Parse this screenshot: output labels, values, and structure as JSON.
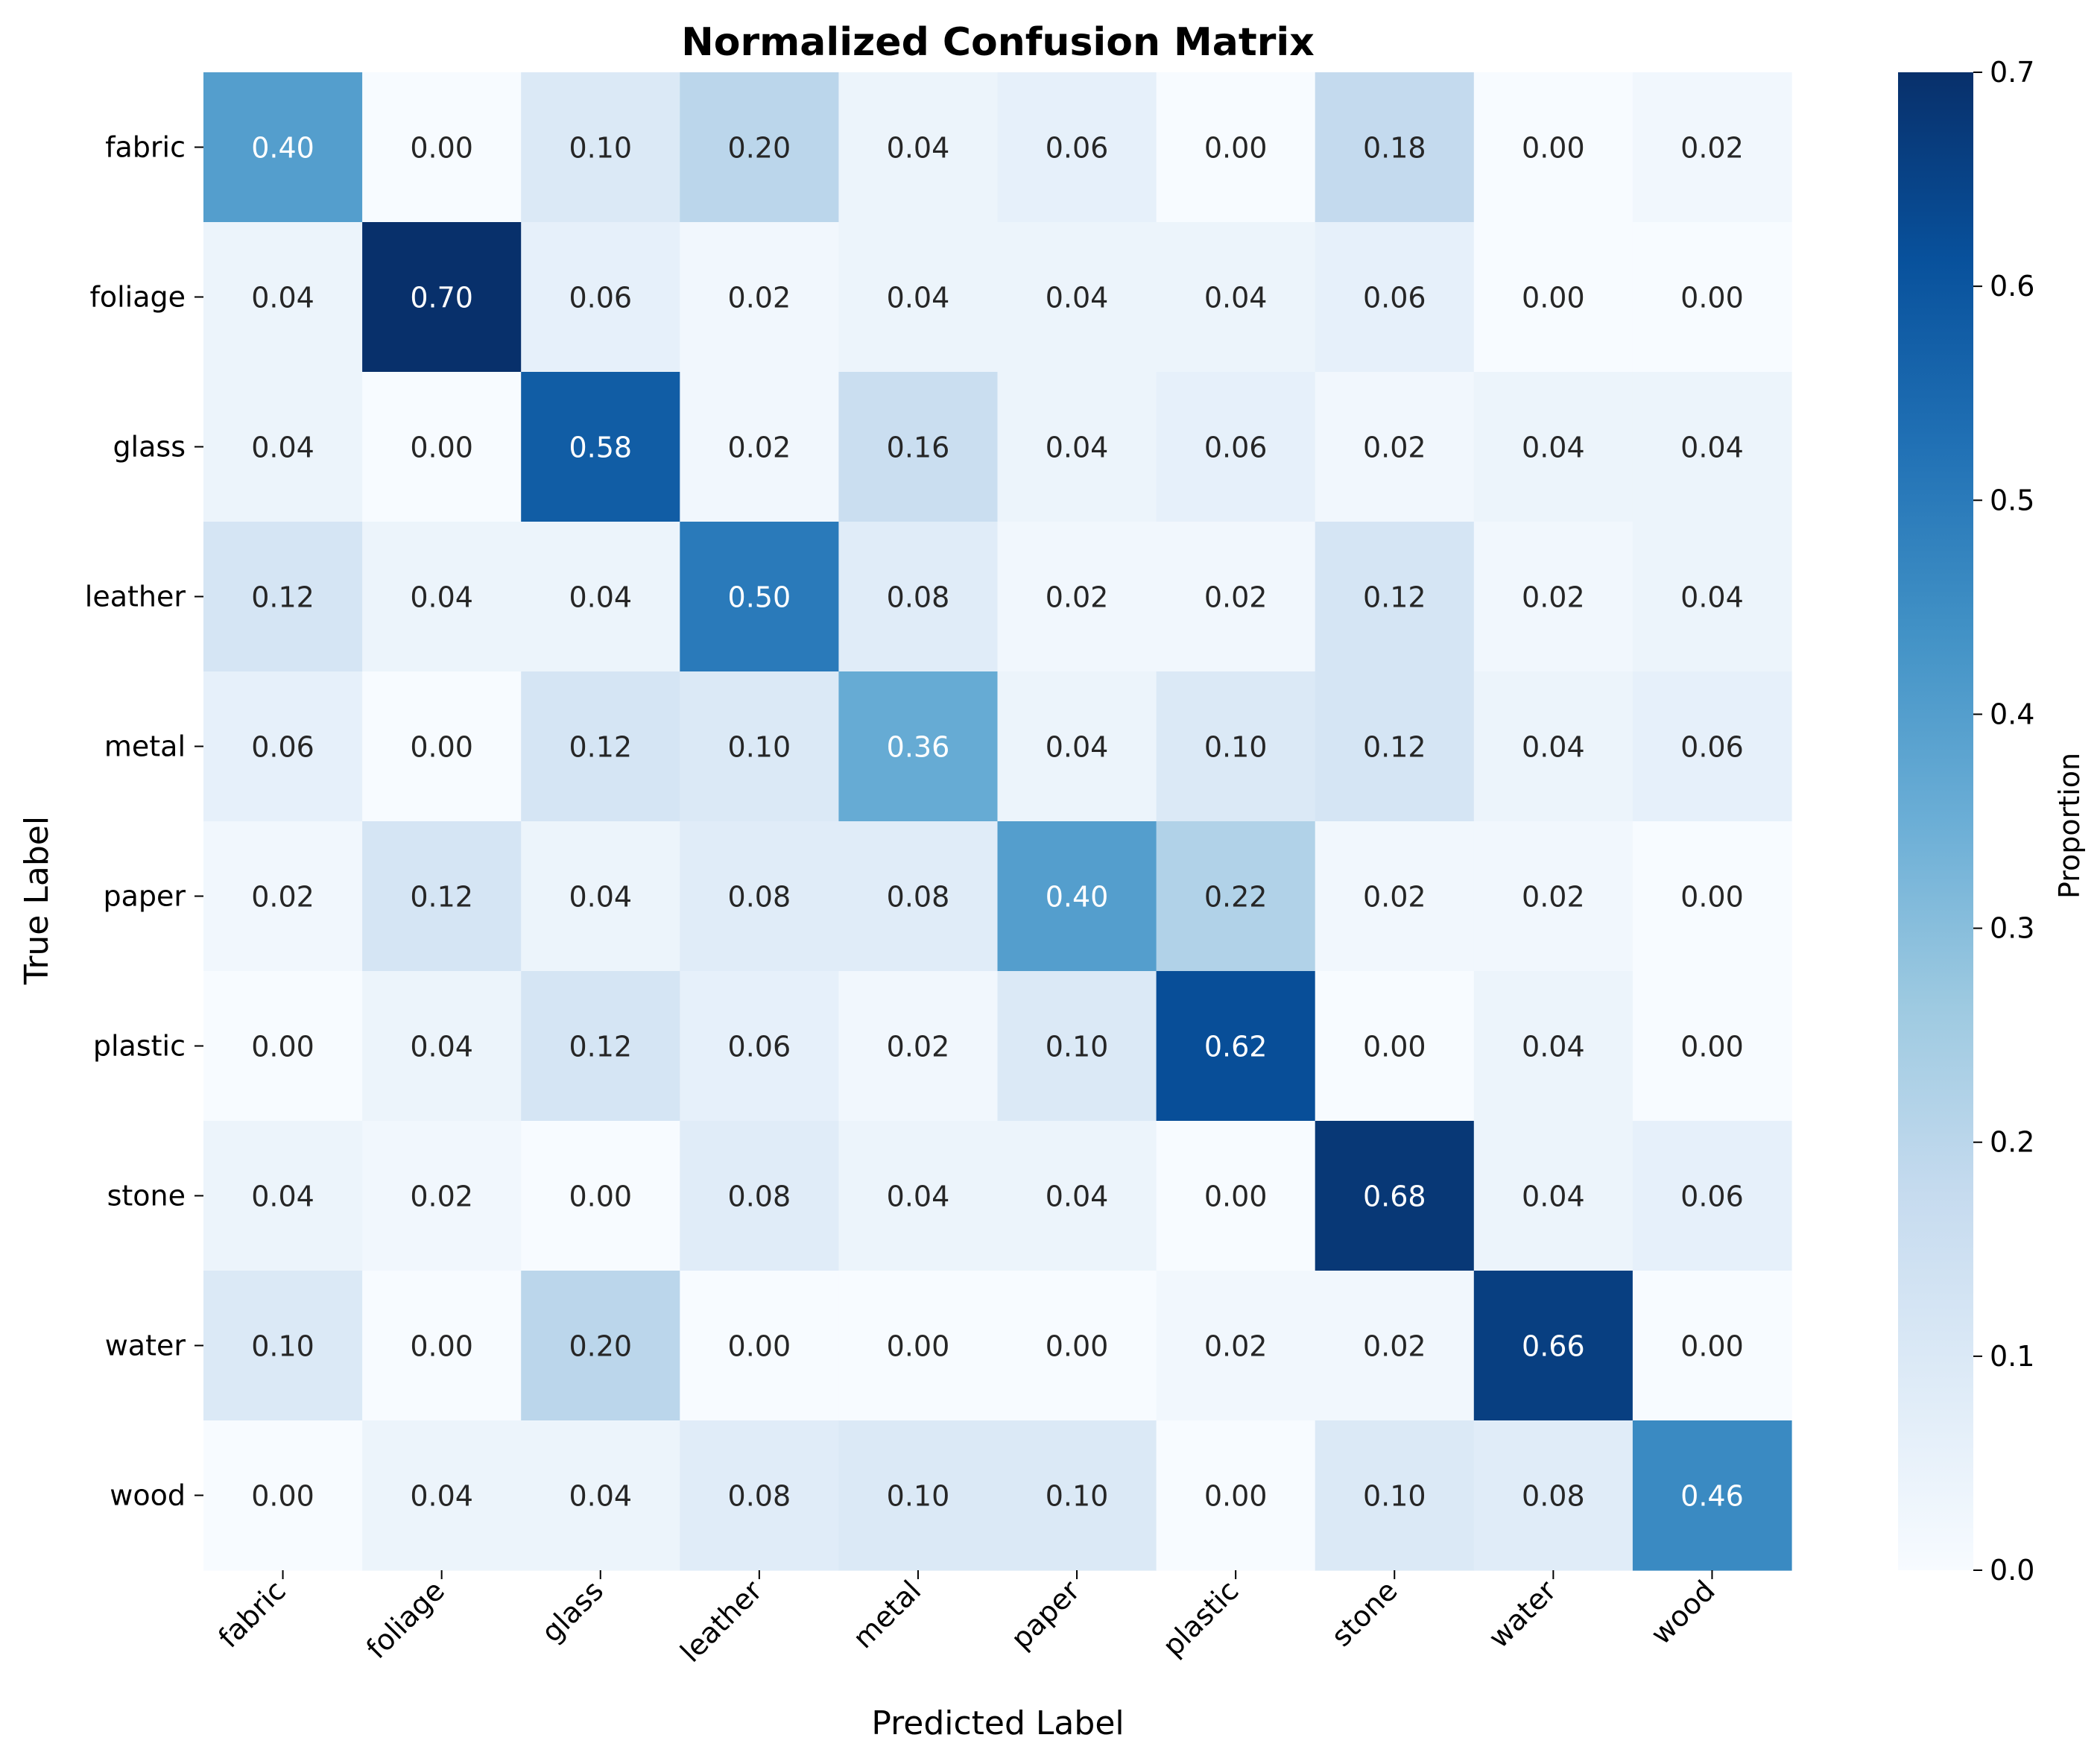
{
  "chart_data": {
    "type": "heatmap",
    "title": "Normalized Confusion Matrix",
    "xlabel": "Predicted Label",
    "ylabel": "True Label",
    "x_categories": [
      "fabric",
      "foliage",
      "glass",
      "leather",
      "metal",
      "paper",
      "plastic",
      "stone",
      "water",
      "wood"
    ],
    "y_categories": [
      "fabric",
      "foliage",
      "glass",
      "leather",
      "metal",
      "paper",
      "plastic",
      "stone",
      "water",
      "wood"
    ],
    "values": [
      [
        0.4,
        0.0,
        0.1,
        0.2,
        0.04,
        0.06,
        0.0,
        0.18,
        0.0,
        0.02
      ],
      [
        0.04,
        0.7,
        0.06,
        0.02,
        0.04,
        0.04,
        0.04,
        0.06,
        0.0,
        0.0
      ],
      [
        0.04,
        0.0,
        0.58,
        0.02,
        0.16,
        0.04,
        0.06,
        0.02,
        0.04,
        0.04
      ],
      [
        0.12,
        0.04,
        0.04,
        0.5,
        0.08,
        0.02,
        0.02,
        0.12,
        0.02,
        0.04
      ],
      [
        0.06,
        0.0,
        0.12,
        0.1,
        0.36,
        0.04,
        0.1,
        0.12,
        0.04,
        0.06
      ],
      [
        0.02,
        0.12,
        0.04,
        0.08,
        0.08,
        0.4,
        0.22,
        0.02,
        0.02,
        0.0
      ],
      [
        0.0,
        0.04,
        0.12,
        0.06,
        0.02,
        0.1,
        0.62,
        0.0,
        0.04,
        0.0
      ],
      [
        0.04,
        0.02,
        0.0,
        0.08,
        0.04,
        0.04,
        0.0,
        0.68,
        0.04,
        0.06
      ],
      [
        0.1,
        0.0,
        0.2,
        0.0,
        0.0,
        0.0,
        0.02,
        0.02,
        0.66,
        0.0
      ],
      [
        0.0,
        0.04,
        0.04,
        0.08,
        0.1,
        0.1,
        0.0,
        0.1,
        0.08,
        0.46
      ]
    ],
    "colorbar": {
      "label": "Proportion",
      "range": [
        0.0,
        0.7
      ],
      "ticks": [
        "0.0",
        "0.1",
        "0.2",
        "0.3",
        "0.4",
        "0.5",
        "0.6",
        "0.7"
      ]
    },
    "colormap": [
      "#f7fbff",
      "#deebf7",
      "#c6dbef",
      "#9ecae1",
      "#6baed6",
      "#4292c6",
      "#2171b5",
      "#08519c",
      "#08306b"
    ],
    "text_colors": {
      "dark": "#262626",
      "light": "#ffffff"
    },
    "grid": false
  }
}
